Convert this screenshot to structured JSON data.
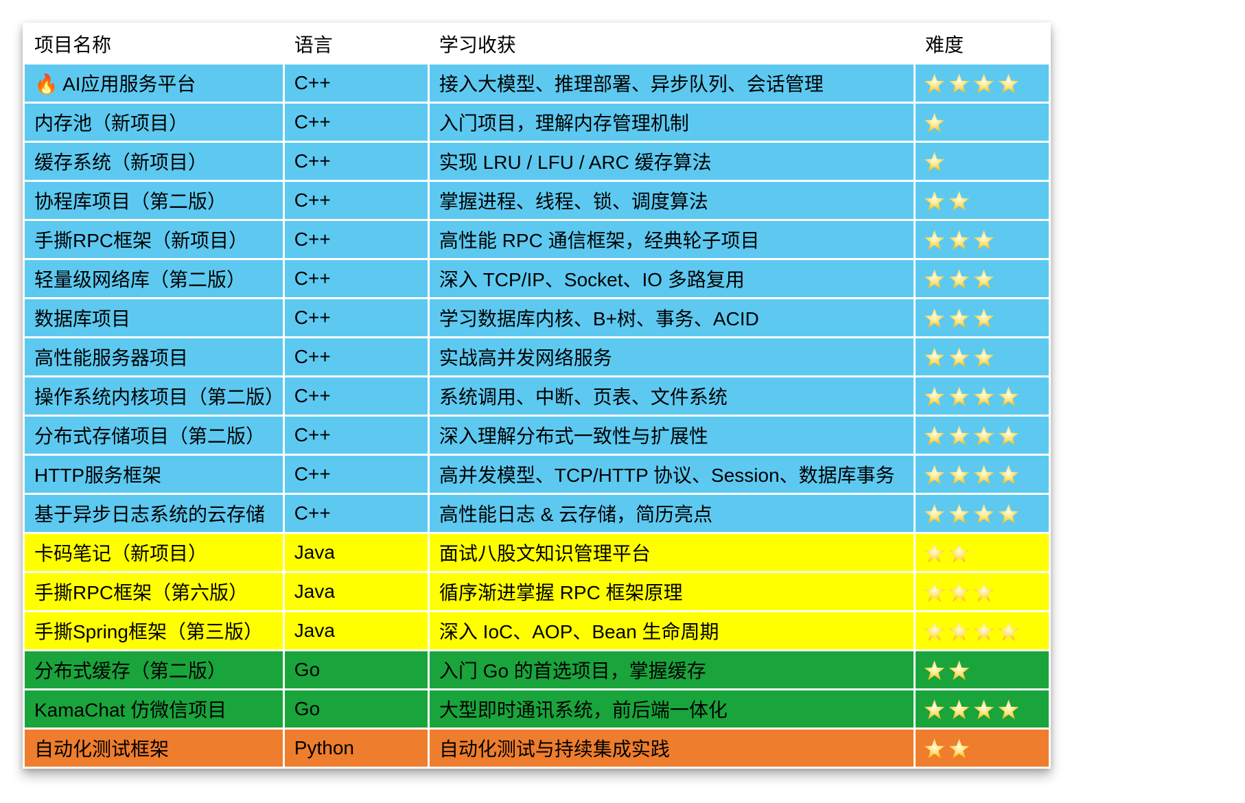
{
  "page": {
    "background": "#ffffff"
  },
  "table": {
    "headers": [
      "项目名称",
      "语言",
      "学习收获",
      "难度"
    ],
    "group_colors": {
      "cpp": "#5DC9F0",
      "java": "#FFFF00",
      "go": "#1AA43C",
      "python": "#EE7D2D"
    },
    "star_color": "#FFC425",
    "rows": [
      {
        "name": "🔥 AI应用服务平台",
        "language": "C++",
        "learning": "接入大模型、推理部署、异步队列、会话管理",
        "stars": 4,
        "group": "cpp"
      },
      {
        "name": "内存池（新项目）",
        "language": "C++",
        "learning": "入门项目，理解内存管理机制",
        "stars": 1,
        "group": "cpp"
      },
      {
        "name": "缓存系统（新项目）",
        "language": "C++",
        "learning": "实现 LRU / LFU / ARC 缓存算法",
        "stars": 1,
        "group": "cpp"
      },
      {
        "name": "协程库项目（第二版）",
        "language": "C++",
        "learning": "掌握进程、线程、锁、调度算法",
        "stars": 2,
        "group": "cpp"
      },
      {
        "name": "手撕RPC框架（新项目）",
        "language": "C++",
        "learning": "高性能 RPC 通信框架，经典轮子项目",
        "stars": 3,
        "group": "cpp"
      },
      {
        "name": "轻量级网络库（第二版）",
        "language": "C++",
        "learning": "深入 TCP/IP、Socket、IO 多路复用",
        "stars": 3,
        "group": "cpp"
      },
      {
        "name": "数据库项目",
        "language": "C++",
        "learning": "学习数据库内核、B+树、事务、ACID",
        "stars": 3,
        "group": "cpp"
      },
      {
        "name": "高性能服务器项目",
        "language": "C++",
        "learning": "实战高并发网络服务",
        "stars": 3,
        "group": "cpp"
      },
      {
        "name": "操作系统内核项目（第二版）",
        "language": "C++",
        "learning": "系统调用、中断、页表、文件系统",
        "stars": 4,
        "group": "cpp"
      },
      {
        "name": "分布式存储项目（第二版）",
        "language": "C++",
        "learning": "深入理解分布式一致性与扩展性",
        "stars": 4,
        "group": "cpp"
      },
      {
        "name": "HTTP服务框架",
        "language": "C++",
        "learning": "高并发模型、TCP/HTTP 协议、Session、数据库事务",
        "stars": 4,
        "group": "cpp"
      },
      {
        "name": "基于异步日志系统的云存储",
        "language": "C++",
        "learning": "高性能日志 & 云存储，简历亮点",
        "stars": 4,
        "group": "cpp"
      },
      {
        "name": "卡码笔记（新项目）",
        "language": "Java",
        "learning": "面试八股文知识管理平台",
        "stars": 2,
        "group": "java"
      },
      {
        "name": "手撕RPC框架（第六版）",
        "language": "Java",
        "learning": "循序渐进掌握 RPC 框架原理",
        "stars": 3,
        "group": "java"
      },
      {
        "name": "手撕Spring框架（第三版）",
        "language": "Java",
        "learning": "深入 IoC、AOP、Bean 生命周期",
        "stars": 4,
        "group": "java"
      },
      {
        "name": "分布式缓存（第二版）",
        "language": "Go",
        "learning": "入门 Go 的首选项目，掌握缓存",
        "stars": 2,
        "group": "go"
      },
      {
        "name": "KamaChat 仿微信项目",
        "language": "Go",
        "learning": "大型即时通讯系统，前后端一体化",
        "stars": 4,
        "group": "go"
      },
      {
        "name": "自动化测试框架",
        "language": "Python",
        "learning": "自动化测试与持续集成实践",
        "stars": 2,
        "group": "python"
      }
    ]
  }
}
